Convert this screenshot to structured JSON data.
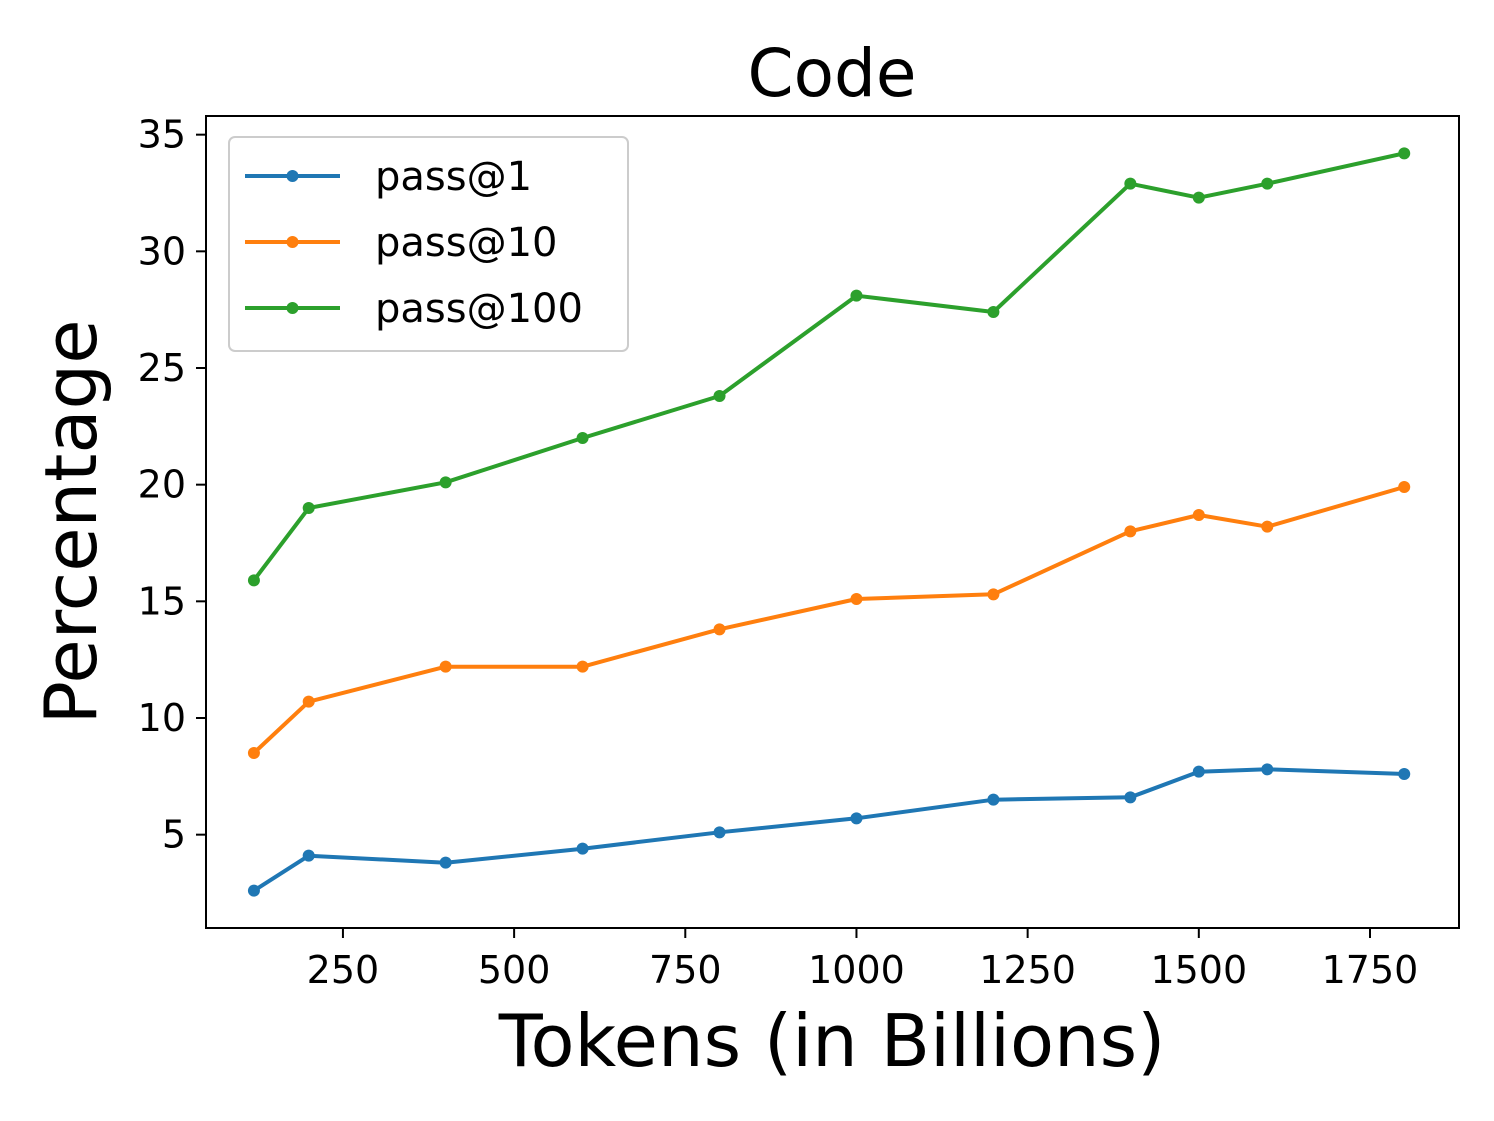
{
  "chart_data": {
    "type": "line",
    "title": "Code",
    "xlabel": "Tokens (in Billions)",
    "ylabel": "Percentage",
    "xlim": [
      50,
      1880
    ],
    "ylim": [
      1.0,
      35.8
    ],
    "xticks": [
      250,
      500,
      750,
      1000,
      1250,
      1500,
      1750
    ],
    "yticks": [
      5,
      10,
      15,
      20,
      25,
      30,
      35
    ],
    "grid": false,
    "legend_position": "top-left",
    "x": [
      120,
      200,
      400,
      600,
      800,
      1000,
      1200,
      1400,
      1500,
      1600,
      1800
    ],
    "series": [
      {
        "name": "pass@1",
        "color": "#1f77b4",
        "values": [
          2.6,
          4.1,
          3.8,
          4.4,
          5.1,
          5.7,
          6.5,
          6.6,
          7.7,
          7.8,
          7.6
        ]
      },
      {
        "name": "pass@10",
        "color": "#ff7f0e",
        "values": [
          8.5,
          10.7,
          12.2,
          12.2,
          13.8,
          15.1,
          15.3,
          18.0,
          18.7,
          18.2,
          19.9
        ]
      },
      {
        "name": "pass@100",
        "color": "#2ca02c",
        "values": [
          15.9,
          19.0,
          20.1,
          22.0,
          23.8,
          28.1,
          27.4,
          32.9,
          32.3,
          32.9,
          34.2
        ]
      }
    ]
  }
}
